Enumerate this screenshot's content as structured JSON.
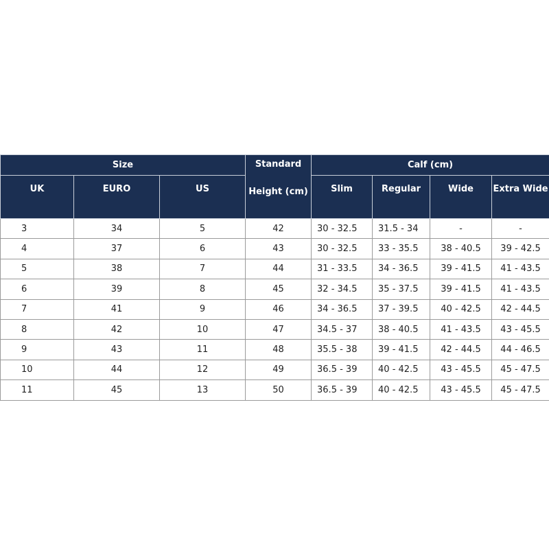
{
  "table": {
    "header": {
      "size": "Size",
      "standard": "Standard",
      "height": "Height (cm)",
      "calf": "Calf (cm)",
      "columns": [
        "UK",
        "EURO",
        "US",
        "Slim",
        "Regular",
        "Wide",
        "Extra Wide"
      ]
    },
    "rows": [
      [
        3,
        34,
        5,
        42,
        "30 - 32.5",
        "31.5 - 34",
        "-",
        "-"
      ],
      [
        4,
        37,
        6,
        43,
        "30 - 32.5",
        "33 - 35.5",
        "38 - 40.5",
        "39 - 42.5"
      ],
      [
        5,
        38,
        7,
        44,
        "31 - 33.5",
        "34 - 36.5",
        "39 - 41.5",
        "41 - 43.5"
      ],
      [
        6,
        39,
        8,
        45,
        "32 - 34.5",
        "35 - 37.5",
        "39 - 41.5",
        "41 - 43.5"
      ],
      [
        7,
        41,
        9,
        46,
        "34 - 36.5",
        "37 - 39.5",
        "40 - 42.5",
        "42 - 44.5"
      ],
      [
        8,
        42,
        10,
        47,
        "34.5 - 37",
        "38 - 40.5",
        "41 - 43.5",
        "43 - 45.5"
      ],
      [
        9,
        43,
        11,
        48,
        "35.5 - 38",
        "39 - 41.5",
        "42 - 44.5",
        "44 - 46.5"
      ],
      [
        10,
        44,
        12,
        49,
        "36.5 - 39",
        "40 - 42.5",
        "43 - 45.5",
        "45 - 47.5"
      ],
      [
        11,
        45,
        13,
        50,
        "36.5 - 39",
        "40 - 42.5",
        "43 - 45.5",
        "45 - 47.5"
      ]
    ]
  }
}
